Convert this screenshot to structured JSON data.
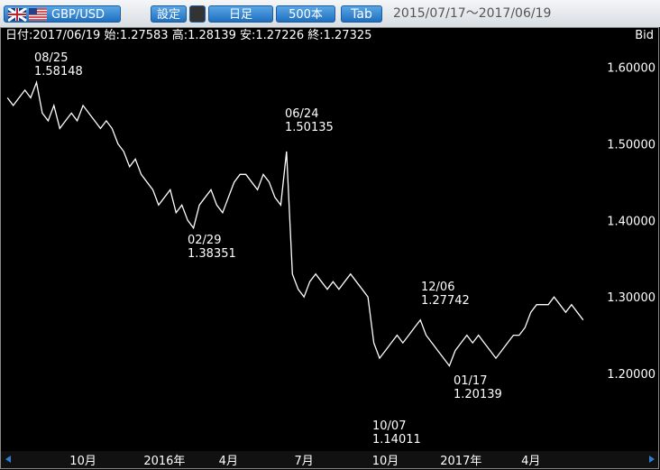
{
  "toolbar": {
    "symbol": "GBP/USD",
    "settings": "設定",
    "period": "日足",
    "count": "500本",
    "tab": "Tab",
    "range": "2015/07/17～2017/06/19"
  },
  "info": "日付:2017/06/19 始:1.27583 高:1.28139 安:1.27226 終:1.27325",
  "chart_data": {
    "type": "line",
    "price_side": "Bid",
    "color": "#ffffff",
    "categories": [
      null,
      null,
      null,
      null,
      null,
      null,
      null,
      null,
      null,
      null,
      null,
      null,
      null,
      "10月",
      null,
      null,
      null,
      null,
      null,
      null,
      null,
      null,
      null,
      null,
      null,
      null,
      null,
      "2016年",
      null,
      null,
      null,
      null,
      null,
      null,
      null,
      null,
      null,
      null,
      "4月",
      null,
      null,
      null,
      null,
      null,
      null,
      null,
      null,
      null,
      null,
      null,
      null,
      "7月",
      null,
      null,
      null,
      null,
      null,
      null,
      null,
      null,
      null,
      null,
      null,
      null,
      null,
      "10月",
      null,
      null,
      null,
      null,
      null,
      null,
      null,
      null,
      null,
      null,
      null,
      null,
      "2017年",
      null,
      null,
      null,
      null,
      null,
      null,
      null,
      null,
      null,
      null,
      null,
      "4月",
      null,
      null,
      null,
      null,
      null,
      null,
      null,
      null,
      null
    ],
    "values": [
      1.56,
      1.55,
      1.56,
      1.57,
      1.56,
      1.58,
      1.54,
      1.53,
      1.55,
      1.52,
      1.53,
      1.54,
      1.53,
      1.55,
      1.54,
      1.53,
      1.52,
      1.53,
      1.52,
      1.5,
      1.49,
      1.47,
      1.48,
      1.46,
      1.45,
      1.44,
      1.42,
      1.43,
      1.44,
      1.41,
      1.42,
      1.4,
      1.39,
      1.42,
      1.43,
      1.44,
      1.42,
      1.41,
      1.43,
      1.45,
      1.46,
      1.46,
      1.45,
      1.44,
      1.46,
      1.45,
      1.43,
      1.42,
      1.49,
      1.33,
      1.31,
      1.3,
      1.32,
      1.33,
      1.32,
      1.31,
      1.32,
      1.31,
      1.32,
      1.33,
      1.32,
      1.31,
      1.3,
      1.24,
      1.22,
      1.23,
      1.24,
      1.25,
      1.24,
      1.25,
      1.26,
      1.27,
      1.25,
      1.24,
      1.23,
      1.22,
      1.21,
      1.23,
      1.24,
      1.25,
      1.24,
      1.25,
      1.24,
      1.23,
      1.22,
      1.23,
      1.24,
      1.25,
      1.25,
      1.26,
      1.28,
      1.29,
      1.29,
      1.29,
      1.3,
      1.29,
      1.28,
      1.29,
      1.28,
      1.27
    ],
    "ylim": [
      1.1,
      1.65
    ],
    "yticks": [
      {
        "value": 1.2,
        "label": "1.20000"
      },
      {
        "value": 1.3,
        "label": "1.30000"
      },
      {
        "value": 1.4,
        "label": "1.40000"
      },
      {
        "value": 1.5,
        "label": "1.50000"
      },
      {
        "value": 1.6,
        "label": "1.60000"
      }
    ],
    "annotations": [
      {
        "date": "08/25",
        "value": 1.58148
      },
      {
        "date": "02/29",
        "value": 1.38351
      },
      {
        "date": "06/24",
        "value": 1.50135
      },
      {
        "date": "10/07",
        "value": 1.14011
      },
      {
        "date": "12/06",
        "value": 1.27742
      },
      {
        "date": "01/17",
        "value": 1.20139
      }
    ]
  }
}
